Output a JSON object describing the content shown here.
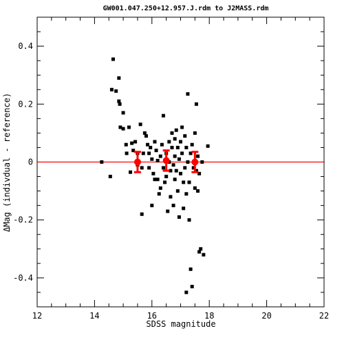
{
  "chart_data": {
    "type": "scatter",
    "title": "GW001.047.250+12.957.J.rdm to J2MASS.rdm",
    "xlabel": "SDSS magnitude",
    "ylabel": "ΔMag (indivdual - reference)",
    "xlim": [
      12,
      22
    ],
    "ylim": [
      -0.5,
      0.5
    ],
    "x_ticks": [
      "12",
      "14",
      "16",
      "18",
      "20",
      "22"
    ],
    "y_ticks": [
      "-0.4",
      "-0.2",
      "0",
      "0.2",
      "0.4"
    ],
    "reference_line": {
      "y": 0,
      "color": "#ff0000"
    },
    "series": [
      {
        "marker": "square",
        "color": "#000000",
        "points": [
          [
            14.25,
            0.0
          ],
          [
            14.55,
            -0.05
          ],
          [
            14.6,
            0.25
          ],
          [
            14.65,
            0.355
          ],
          [
            14.75,
            0.245
          ],
          [
            14.85,
            0.29
          ],
          [
            14.85,
            0.21
          ],
          [
            14.88,
            0.2
          ],
          [
            14.9,
            0.12
          ],
          [
            15.0,
            0.17
          ],
          [
            15.0,
            0.115
          ],
          [
            15.1,
            0.06
          ],
          [
            15.12,
            0.03
          ],
          [
            15.2,
            0.12
          ],
          [
            15.25,
            -0.035
          ],
          [
            15.3,
            0.065
          ],
          [
            15.35,
            0.04
          ],
          [
            15.42,
            0.07
          ],
          [
            15.5,
            0.03
          ],
          [
            15.5,
            -0.01
          ],
          [
            15.55,
            0.0
          ],
          [
            15.6,
            0.13
          ],
          [
            15.65,
            -0.02
          ],
          [
            15.65,
            -0.18
          ],
          [
            15.7,
            0.03
          ],
          [
            15.75,
            0.1
          ],
          [
            15.8,
            0.09
          ],
          [
            15.85,
            0.06
          ],
          [
            15.9,
            0.03
          ],
          [
            15.9,
            -0.02
          ],
          [
            15.95,
            0.05
          ],
          [
            16.0,
            0.01
          ],
          [
            16.05,
            -0.04
          ],
          [
            16.1,
            -0.06
          ],
          [
            16.1,
            0.07
          ],
          [
            16.15,
            0.04
          ],
          [
            16.2,
            0.005
          ],
          [
            16.2,
            -0.06
          ],
          [
            16.25,
            -0.11
          ],
          [
            16.3,
            0.02
          ],
          [
            16.3,
            -0.09
          ],
          [
            16.35,
            0.06
          ],
          [
            16.4,
            0.16
          ],
          [
            16.4,
            -0.02
          ],
          [
            16.45,
            -0.07
          ],
          [
            16.5,
            0.03
          ],
          [
            16.5,
            -0.05
          ],
          [
            16.55,
            -0.17
          ],
          [
            16.6,
            0.07
          ],
          [
            16.6,
            0.0
          ],
          [
            16.65,
            -0.03
          ],
          [
            16.65,
            -0.12
          ],
          [
            16.7,
            0.1
          ],
          [
            16.7,
            0.05
          ],
          [
            16.75,
            -0.01
          ],
          [
            16.75,
            -0.15
          ],
          [
            16.8,
            0.08
          ],
          [
            16.8,
            0.02
          ],
          [
            16.8,
            -0.06
          ],
          [
            16.85,
            0.11
          ],
          [
            16.85,
            -0.03
          ],
          [
            16.9,
            0.05
          ],
          [
            16.9,
            -0.1
          ],
          [
            16.95,
            0.01
          ],
          [
            16.95,
            -0.19
          ],
          [
            17.0,
            0.07
          ],
          [
            17.0,
            -0.04
          ],
          [
            17.05,
            0.12
          ],
          [
            17.05,
            0.03
          ],
          [
            17.1,
            -0.07
          ],
          [
            17.1,
            -0.16
          ],
          [
            17.15,
            0.09
          ],
          [
            17.15,
            -0.02
          ],
          [
            17.2,
            0.05
          ],
          [
            17.2,
            -0.11
          ],
          [
            17.25,
            0.235
          ],
          [
            17.25,
            0.0
          ],
          [
            17.3,
            -0.07
          ],
          [
            17.3,
            -0.2
          ],
          [
            17.35,
            0.03
          ],
          [
            17.35,
            -0.37
          ],
          [
            17.4,
            0.06
          ],
          [
            17.4,
            -0.43
          ],
          [
            17.45,
            -0.02
          ],
          [
            17.5,
            0.1
          ],
          [
            17.5,
            -0.09
          ],
          [
            17.55,
            0.2
          ],
          [
            17.55,
            -0.03
          ],
          [
            17.6,
            0.02
          ],
          [
            17.65,
            -0.04
          ],
          [
            17.65,
            -0.31
          ],
          [
            17.7,
            -0.3
          ],
          [
            17.75,
            0.0
          ],
          [
            17.8,
            -0.32
          ],
          [
            17.95,
            0.055
          ],
          [
            17.2,
            -0.45
          ],
          [
            16.0,
            -0.15
          ],
          [
            17.6,
            -0.1
          ]
        ]
      },
      {
        "marker": "circle-errorbar",
        "color": "#ff0000",
        "points": [
          [
            15.5,
            0.0,
            0.035
          ],
          [
            16.5,
            0.005,
            0.035
          ],
          [
            17.5,
            0.0,
            0.035
          ]
        ]
      }
    ],
    "legend": "none",
    "grid": false
  }
}
